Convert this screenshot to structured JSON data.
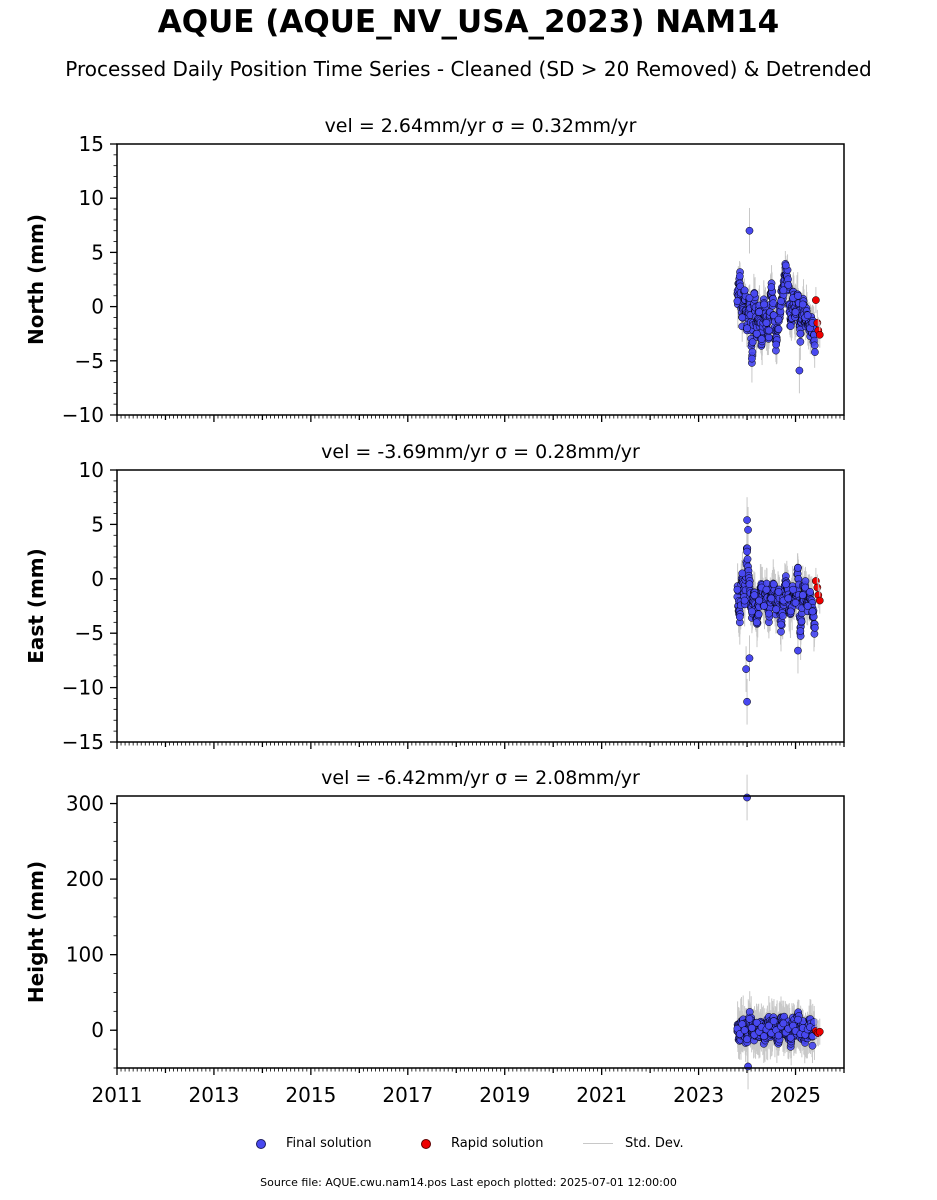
{
  "title": "AQUE (AQUE_NV_USA_2023) NAM14",
  "subtitle": "Processed Daily Position Time Series - Cleaned (SD > 20 Removed) & Detrended",
  "legend": {
    "final": "Final solution",
    "rapid": "Rapid solution",
    "std": "Std. Dev."
  },
  "footer": "Source file: AQUE.cwu.nam14.pos  Last epoch plotted: 2025-07-01 12:00:00",
  "colors": {
    "final": "#4848f0",
    "rapid": "#ee0000",
    "std": "#c8c8c8",
    "marker_edge": "#000000"
  },
  "chart_data": [
    {
      "type": "scatter",
      "title": "vel = 2.64mm/yr   σ = 0.32mm/yr",
      "ylabel": "North (mm)",
      "xlim": [
        2011,
        2026
      ],
      "ylim": [
        -10,
        15
      ],
      "yticks": [
        -10,
        -5,
        0,
        5,
        10,
        15
      ],
      "ytick_labels": [
        "−10",
        "−5",
        "0",
        "5",
        "10",
        "15"
      ],
      "xticks": [
        2011,
        2013,
        2015,
        2017,
        2019,
        2021,
        2023,
        2025
      ],
      "xtick_labels": [
        "2011",
        "2013",
        "2015",
        "2017",
        "2019",
        "2021",
        "2023",
        "2025"
      ],
      "show_xtick_labels": false,
      "series": [
        {
          "name": "Final solution",
          "x": [
            2023.8,
            2023.85,
            2023.9,
            2023.95,
            2024.0,
            2024.05,
            2024.1,
            2024.15,
            2024.2,
            2024.25,
            2024.3,
            2024.35,
            2024.4,
            2024.45,
            2024.5,
            2024.55,
            2024.6,
            2024.65,
            2024.7,
            2024.75,
            2024.8,
            2024.85,
            2024.9,
            2024.95,
            2025.0,
            2025.05,
            2025.1,
            2025.15,
            2025.2,
            2025.25,
            2025.3,
            2025.35,
            2025.4
          ],
          "y": [
            0.5,
            2.8,
            -1.0,
            1.5,
            -2.0,
            0.8,
            -4.8,
            1.2,
            -2.5,
            -0.5,
            -3.0,
            0.2,
            -1.5,
            -2.2,
            1.8,
            -0.8,
            -3.5,
            -1.2,
            0.5,
            1.5,
            3.8,
            2.0,
            -1.8,
            0.8,
            -0.5,
            1.0,
            -2.5,
            0.2,
            -1.0,
            -0.8,
            -2.0,
            -1.5,
            -4.2
          ]
        },
        {
          "name": "Rapid solution",
          "x": [
            2025.42,
            2025.45,
            2025.47,
            2025.5
          ],
          "y": [
            0.6,
            -1.5,
            -2.2,
            -2.6
          ]
        }
      ],
      "outliers": [
        {
          "x": 2024.05,
          "y": 7.0
        },
        {
          "x": 2025.08,
          "y": -5.9
        }
      ]
    },
    {
      "type": "scatter",
      "title": "vel = -3.69mm/yr   σ = 0.28mm/yr",
      "ylabel": "East (mm)",
      "xlim": [
        2011,
        2026
      ],
      "ylim": [
        -15,
        10
      ],
      "yticks": [
        -15,
        -10,
        -5,
        0,
        5,
        10
      ],
      "ytick_labels": [
        "−15",
        "−10",
        "−5",
        "0",
        "5",
        "10"
      ],
      "xticks": [
        2011,
        2013,
        2015,
        2017,
        2019,
        2021,
        2023,
        2025
      ],
      "xtick_labels": [
        "2011",
        "2013",
        "2015",
        "2017",
        "2019",
        "2021",
        "2023",
        "2025"
      ],
      "show_xtick_labels": false,
      "series": [
        {
          "name": "Final solution",
          "x": [
            2023.8,
            2023.85,
            2023.9,
            2023.95,
            2024.0,
            2024.05,
            2024.1,
            2024.15,
            2024.2,
            2024.25,
            2024.3,
            2024.35,
            2024.4,
            2024.45,
            2024.5,
            2024.55,
            2024.6,
            2024.65,
            2024.7,
            2024.75,
            2024.8,
            2024.85,
            2024.9,
            2024.95,
            2025.0,
            2025.05,
            2025.1,
            2025.15,
            2025.2,
            2025.25,
            2025.3,
            2025.35,
            2025.4
          ],
          "y": [
            -1.0,
            -3.5,
            0.5,
            -2.0,
            2.5,
            -0.5,
            -3.0,
            -1.5,
            -4.0,
            -2.0,
            -0.8,
            -2.5,
            -1.0,
            -3.2,
            -1.8,
            -0.5,
            -2.8,
            -1.2,
            -4.2,
            -2.0,
            -0.5,
            -1.8,
            -3.0,
            -1.0,
            -2.2,
            1.0,
            -4.8,
            -1.5,
            -0.8,
            -2.5,
            -1.2,
            -3.0,
            -4.5
          ]
        },
        {
          "name": "Rapid solution",
          "x": [
            2025.42,
            2025.45,
            2025.47,
            2025.5
          ],
          "y": [
            -0.2,
            -0.8,
            -1.5,
            -2.0
          ]
        }
      ],
      "outliers": [
        {
          "x": 2024.0,
          "y": 5.4
        },
        {
          "x": 2024.02,
          "y": 4.5
        },
        {
          "x": 2024.05,
          "y": -7.3
        },
        {
          "x": 2023.98,
          "y": -8.3
        },
        {
          "x": 2024.0,
          "y": -11.3
        },
        {
          "x": 2025.05,
          "y": -6.6
        }
      ]
    },
    {
      "type": "scatter",
      "title": "vel = -6.42mm/yr   σ = 2.08mm/yr",
      "ylabel": "Height (mm)",
      "xlim": [
        2011,
        2026
      ],
      "ylim": [
        -50,
        310
      ],
      "yticks": [
        0,
        100,
        200,
        300
      ],
      "ytick_labels": [
        "0",
        "100",
        "200",
        "300"
      ],
      "xticks": [
        2011,
        2013,
        2015,
        2017,
        2019,
        2021,
        2023,
        2025
      ],
      "xtick_labels": [
        "2011",
        "2013",
        "2015",
        "2017",
        "2019",
        "2021",
        "2023",
        "2025"
      ],
      "show_xtick_labels": true,
      "series": [
        {
          "name": "Final solution",
          "x": [
            2023.8,
            2023.85,
            2023.9,
            2023.95,
            2024.0,
            2024.05,
            2024.1,
            2024.15,
            2024.2,
            2024.25,
            2024.3,
            2024.35,
            2024.4,
            2024.45,
            2024.5,
            2024.55,
            2024.6,
            2024.65,
            2024.7,
            2024.75,
            2024.8,
            2024.85,
            2024.9,
            2024.95,
            2025.0,
            2025.05,
            2025.1,
            2025.15,
            2025.2,
            2025.25,
            2025.3,
            2025.35,
            2025.4
          ],
          "y": [
            2,
            -5,
            8,
            0,
            -12,
            15,
            3,
            -6,
            10,
            -2,
            4,
            -8,
            1,
            6,
            -4,
            12,
            0,
            -7,
            5,
            9,
            -3,
            2,
            -10,
            6,
            -1,
            14,
            -5,
            3,
            -6,
            1,
            4,
            -8,
            2
          ]
        },
        {
          "name": "Rapid solution",
          "x": [
            2025.42,
            2025.45,
            2025.47,
            2025.5
          ],
          "y": [
            -1,
            -3,
            -4,
            -2
          ]
        }
      ],
      "outliers": [
        {
          "x": 2024.0,
          "y": 308
        },
        {
          "x": 2024.02,
          "y": -48
        }
      ]
    }
  ]
}
